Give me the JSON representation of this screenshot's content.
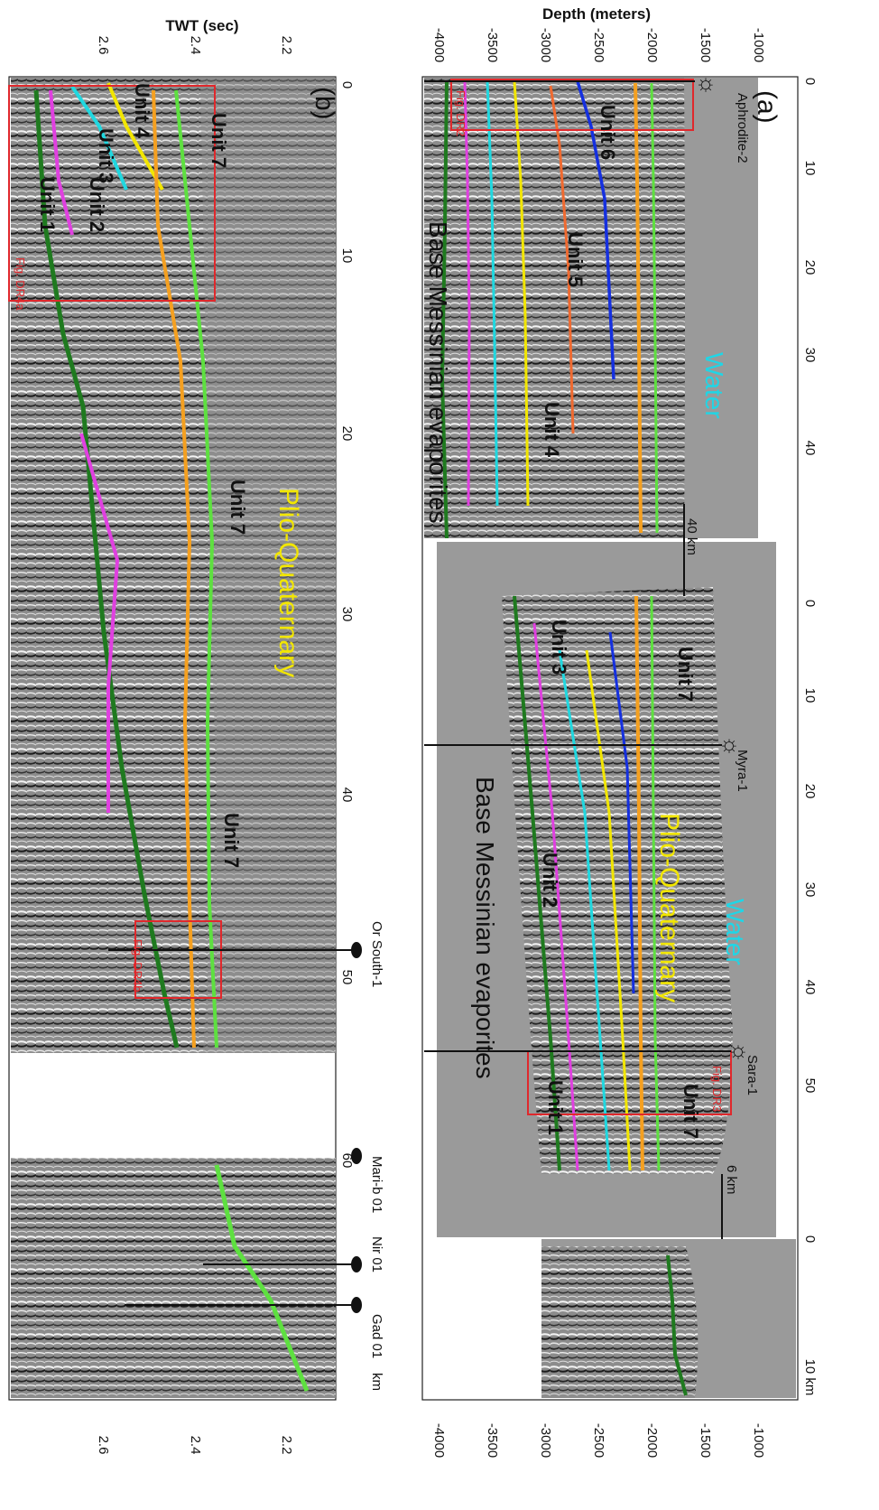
{
  "axes": {
    "depth_label": "Depth (meters)",
    "twt_label": "TWT (sec)",
    "depth_ticks": [
      "-1000",
      "-1500",
      "-2000",
      "-2500",
      "-3000",
      "-3500",
      "-4000"
    ],
    "twt_ticks": [
      "2.2",
      "2.4",
      "2.6"
    ],
    "dist_ticks_a1": [
      "0",
      "10",
      "20",
      "30",
      "40"
    ],
    "dist_ticks_a2": [
      "0",
      "10",
      "20",
      "30",
      "40",
      "50"
    ],
    "dist_ticks_a3": [
      "0",
      "10 km"
    ],
    "dist_ticks_b": [
      "0",
      "10",
      "20",
      "30",
      "40",
      "50",
      "60"
    ],
    "km_label": "km"
  },
  "panels": {
    "a": "(a)",
    "b": "(b)"
  },
  "scale_bars": {
    "s40": "40 km",
    "s6": "6 km"
  },
  "wells": [
    "Aphrodite-2",
    "Myra-1",
    "Sara-1",
    "Or South-1",
    "Mari-b 01",
    "Nir 01",
    "Gad 01"
  ],
  "figrefs": [
    "Fig. DR2",
    "Fig. DR3",
    "Fig. DR4a",
    "Fig. DR4b"
  ],
  "units": [
    "Unit 1",
    "Unit 2",
    "Unit 3",
    "Unit 4",
    "Unit 5",
    "Unit 6",
    "Unit 7"
  ],
  "labels": {
    "water": "Water",
    "pq": "Plio-Quaternary",
    "bme": "Base Messinian evaporites"
  },
  "horizon_colors": {
    "unit1_dark_green": "#1f7a1f",
    "unit2_magenta": "#e040e0",
    "unit3_cyan": "#20d8e0",
    "unit4_yellow": "#f2e600",
    "unit5_orange_red": "#f06a30",
    "unit6_blue": "#1530e0",
    "unit7_orange": "#f5a020",
    "top_green": "#5ee040",
    "water_gray": "#9a9a9a",
    "box_red": "#e0282c"
  }
}
